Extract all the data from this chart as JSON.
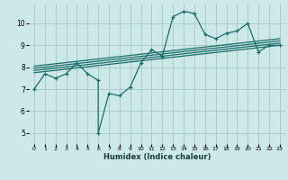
{
  "bg_color": "#cce8e8",
  "grid_color": "#aacccc",
  "line_color": "#1a6e6a",
  "xlabel": "Humidex (Indice chaleur)",
  "ylim": [
    4.5,
    10.9
  ],
  "xlim": [
    -0.5,
    23.5
  ],
  "yticks": [
    5,
    6,
    7,
    8,
    9,
    10
  ],
  "xticks": [
    0,
    1,
    2,
    3,
    4,
    5,
    6,
    7,
    8,
    9,
    10,
    11,
    12,
    13,
    14,
    15,
    16,
    17,
    18,
    19,
    20,
    21,
    22,
    23
  ],
  "main_series": [
    [
      0,
      7.0
    ],
    [
      1,
      7.7
    ],
    [
      2,
      7.5
    ],
    [
      3,
      7.7
    ],
    [
      4,
      8.2
    ],
    [
      5,
      7.7
    ],
    [
      6,
      7.4
    ],
    [
      6,
      5.0
    ],
    [
      7,
      6.8
    ],
    [
      8,
      6.7
    ],
    [
      9,
      7.1
    ],
    [
      10,
      8.2
    ],
    [
      11,
      8.8
    ],
    [
      12,
      8.5
    ],
    [
      13,
      10.3
    ],
    [
      14,
      10.55
    ],
    [
      15,
      10.45
    ],
    [
      16,
      9.5
    ],
    [
      17,
      9.3
    ],
    [
      18,
      9.55
    ],
    [
      19,
      9.65
    ],
    [
      20,
      10.0
    ],
    [
      21,
      8.7
    ],
    [
      22,
      9.0
    ],
    [
      23,
      9.0
    ]
  ],
  "regression_lines": [
    [
      [
        0,
        7.75
      ],
      [
        23,
        9.0
      ]
    ],
    [
      [
        0,
        7.85
      ],
      [
        23,
        9.1
      ]
    ],
    [
      [
        0,
        7.95
      ],
      [
        23,
        9.2
      ]
    ],
    [
      [
        0,
        8.05
      ],
      [
        23,
        9.3
      ]
    ]
  ]
}
